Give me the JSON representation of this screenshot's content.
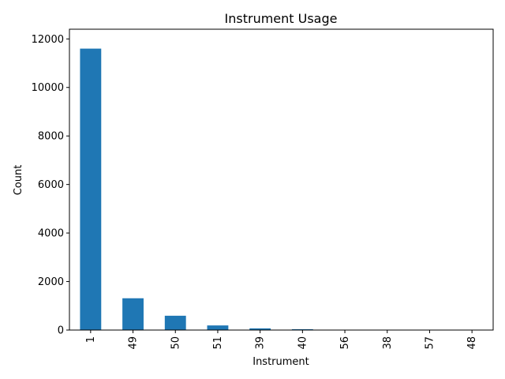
{
  "chart_data": {
    "type": "bar",
    "title": "Instrument Usage",
    "xlabel": "Instrument",
    "ylabel": "Count",
    "categories": [
      "1",
      "49",
      "50",
      "51",
      "39",
      "40",
      "56",
      "38",
      "57",
      "48"
    ],
    "values": [
      11600,
      1310,
      590,
      190,
      70,
      35,
      8,
      5,
      4,
      3
    ],
    "ylim": [
      0,
      12400
    ],
    "yticks": [
      0,
      2000,
      4000,
      6000,
      8000,
      10000,
      12000
    ],
    "ytick_labels": [
      "0",
      "2000",
      "4000",
      "6000",
      "8000",
      "10000",
      "12000"
    ],
    "grid": false,
    "legend": "none",
    "bar_color": "#1f77b4"
  }
}
